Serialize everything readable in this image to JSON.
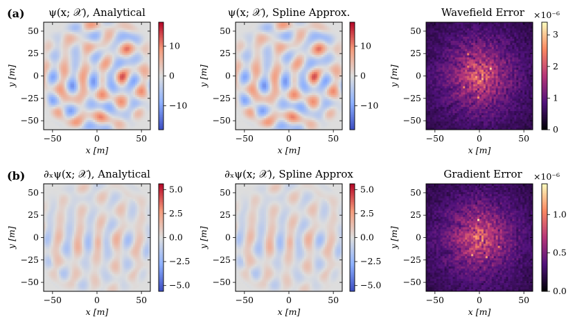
{
  "figure": {
    "row_labels": [
      "(a)",
      "(b)"
    ],
    "x_axis_label": "x [m]",
    "y_axis_label": "y [m]"
  },
  "chart_data": [
    {
      "id": "p1",
      "type": "heatmap",
      "colormap": "coolwarm",
      "title": "ψ(x; 𝒳), Analytical",
      "xlabel": "x [m]",
      "ylabel": "y [m]",
      "xlim": [
        -60,
        60
      ],
      "ylim": [
        -60,
        60
      ],
      "xticks": [
        -50,
        0,
        50
      ],
      "yticks": [
        -50,
        -25,
        0,
        25,
        50
      ],
      "colorbar": {
        "range": [
          -18,
          18
        ],
        "ticks": [
          -10,
          0,
          10
        ],
        "tick_labels": [
          "−10",
          "0",
          "10"
        ],
        "exponent": ""
      }
    },
    {
      "id": "p2",
      "type": "heatmap",
      "colormap": "coolwarm",
      "title": "ψ(x; 𝒳), Spline Approx.",
      "xlabel": "x [m]",
      "ylabel": "y [m]",
      "xlim": [
        -60,
        60
      ],
      "ylim": [
        -60,
        60
      ],
      "xticks": [
        -50,
        0,
        50
      ],
      "yticks": [
        -50,
        -25,
        0,
        25,
        50
      ],
      "colorbar": {
        "range": [
          -18,
          18
        ],
        "ticks": [
          -10,
          0,
          10
        ],
        "tick_labels": [
          "−10",
          "0",
          "10"
        ],
        "exponent": ""
      }
    },
    {
      "id": "p3",
      "type": "heatmap",
      "colormap": "magma",
      "title": "Wavefield Error",
      "xlabel": "x [m]",
      "ylabel": "y [m]",
      "xlim": [
        -60,
        60
      ],
      "ylim": [
        -60,
        60
      ],
      "xticks": [
        -50,
        0,
        50
      ],
      "yticks": [
        -50,
        -25,
        0,
        25,
        50
      ],
      "colorbar": {
        "range": [
          0,
          3.4
        ],
        "ticks": [
          0,
          1,
          2,
          3
        ],
        "tick_labels": [
          "0",
          "1",
          "2",
          "3"
        ],
        "exponent": "×10⁻⁶"
      }
    },
    {
      "id": "p4",
      "type": "heatmap",
      "colormap": "coolwarm",
      "title": "∂ₓψ(x; 𝒳), Analytical",
      "xlabel": "x [m]",
      "ylabel": "y [m]",
      "xlim": [
        -60,
        60
      ],
      "ylim": [
        -60,
        60
      ],
      "xticks": [
        -50,
        0,
        50
      ],
      "yticks": [
        -50,
        -25,
        0,
        25,
        50
      ],
      "colorbar": {
        "range": [
          -5.6,
          5.6
        ],
        "ticks": [
          -5,
          -2.5,
          0,
          2.5,
          5
        ],
        "tick_labels": [
          "−5.0",
          "−2.5",
          "0.0",
          "2.5",
          "5.0"
        ],
        "exponent": ""
      }
    },
    {
      "id": "p5",
      "type": "heatmap",
      "colormap": "coolwarm",
      "title": "∂ₓψ(x; 𝒳), Spline Approx",
      "xlabel": "x [m]",
      "ylabel": "y [m]",
      "xlim": [
        -60,
        60
      ],
      "ylim": [
        -60,
        60
      ],
      "xticks": [
        -50,
        0,
        50
      ],
      "yticks": [
        -50,
        -25,
        0,
        25,
        50
      ],
      "colorbar": {
        "range": [
          -5.6,
          5.6
        ],
        "ticks": [
          -5,
          -2.5,
          0,
          2.5,
          5
        ],
        "tick_labels": [
          "−5.0",
          "−2.5",
          "0.0",
          "2.5",
          "5.0"
        ],
        "exponent": ""
      }
    },
    {
      "id": "p6",
      "type": "heatmap",
      "colormap": "magma",
      "title": "Gradient Error",
      "xlabel": "x [m]",
      "ylabel": "y [m]",
      "xlim": [
        -60,
        60
      ],
      "ylim": [
        -60,
        60
      ],
      "xticks": [
        -50,
        0,
        50
      ],
      "yticks": [
        -50,
        -25,
        0,
        25,
        50
      ],
      "colorbar": {
        "range": [
          0,
          1.4
        ],
        "ticks": [
          0,
          0.5,
          1
        ],
        "tick_labels": [
          "0.0",
          "0.5",
          "1.0"
        ],
        "exponent": "×10⁻⁶"
      }
    }
  ]
}
